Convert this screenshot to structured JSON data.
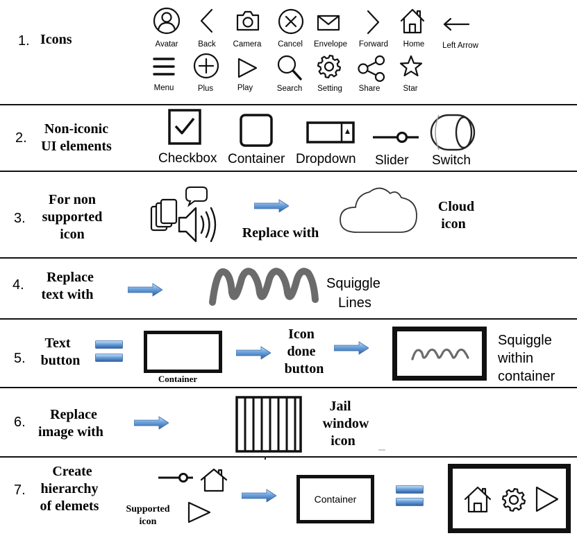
{
  "rows": {
    "r1": {
      "number": "1.",
      "title": "Icons",
      "icons": {
        "avatar": "Avatar",
        "back": "Back",
        "camera": "Camera",
        "cancel": "Cancel",
        "envelope": "Envelope",
        "forward": "Forward",
        "home": "Home",
        "left_arrow": "Left Arrow",
        "menu": "Menu",
        "plus": "Plus",
        "play": "Play",
        "search": "Search",
        "setting": "Setting",
        "share": "Share",
        "star": "Star"
      }
    },
    "r2": {
      "number": "2.",
      "title_line1": "Non-iconic",
      "title_line2": "UI elements",
      "elements": {
        "checkbox": "Checkbox",
        "container": "Container",
        "dropdown": "Dropdown",
        "slider": "Slider",
        "switch": "Switch"
      }
    },
    "r3": {
      "number": "3.",
      "title_line1": "For non",
      "title_line2": "supported",
      "title_line3": "icon",
      "replace_with": "Replace with",
      "result_line1": "Cloud",
      "result_line2": "icon"
    },
    "r4": {
      "number": "4.",
      "title_line1": "Replace",
      "title_line2": "text with",
      "result_line1": "Squiggle",
      "result_line2": "Lines"
    },
    "r5": {
      "number": "5.",
      "title_line1": "Text",
      "title_line2": "button",
      "container_label": "Container",
      "middle_line1": "Icon",
      "middle_line2": "done",
      "middle_line3": "button",
      "result_line1": "Squiggle",
      "result_line2": "within",
      "result_line3": "container"
    },
    "r6": {
      "number": "6.",
      "title_line1": "Replace",
      "title_line2": "image with",
      "result_line1": "Jail",
      "result_line2": "window",
      "result_line3": "icon"
    },
    "r7": {
      "number": "7.",
      "title_line1": "Create",
      "title_line2": "hierarchy",
      "title_line3": "of elemets",
      "supported_line1": "Supported",
      "supported_line2": "icon",
      "container_label": "Container"
    }
  },
  "colors": {
    "line": "#111111",
    "arrow_blue": "#4a86c8",
    "arrow_light": "#a9cdf0",
    "squiggle": "#707070"
  }
}
